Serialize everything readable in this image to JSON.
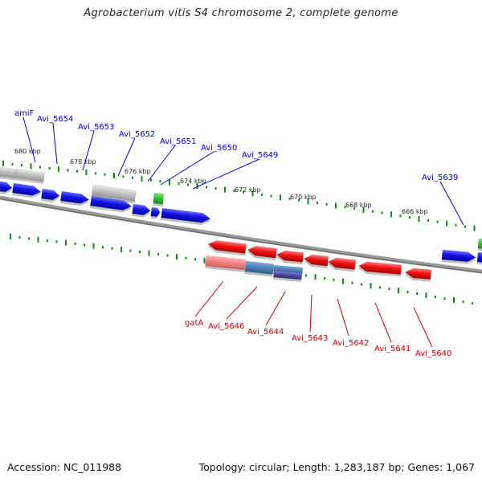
{
  "title": "Agrobacterium vitis S4 chromosome 2, complete genome",
  "footer": {
    "accession": "Accession: NC_011988",
    "topology": "Topology: circular; Length: 1,283,187 bp; Genes: 1,067"
  },
  "colors": {
    "forward_gene": "#1010e0",
    "reverse_gene": "#e01010",
    "pseudo_gene": "#b8b8b8",
    "rna_gene": "#33bb33",
    "forward_label": "#0000cc",
    "reverse_label": "#cc0000",
    "tick": "#118811",
    "backbone": "#777777"
  },
  "scale": {
    "tick_labels": [
      "680 kbp",
      "678 kbp",
      "676 kbp",
      "674 kbp",
      "672 kbp",
      "670 kbp",
      "668 kbp",
      "666 kbp"
    ]
  },
  "forward_labels": [
    "amiF",
    "Avi_5654",
    "Avi_5653",
    "Avi_5652",
    "Avi_5651",
    "Avi_5650",
    "Avi_5649",
    "Avi_5639"
  ],
  "reverse_labels": [
    "gatA",
    "Avi_5646",
    "Avi_5644",
    "Avi_5643",
    "Avi_5642",
    "Avi_5641",
    "Avi_5640"
  ]
}
